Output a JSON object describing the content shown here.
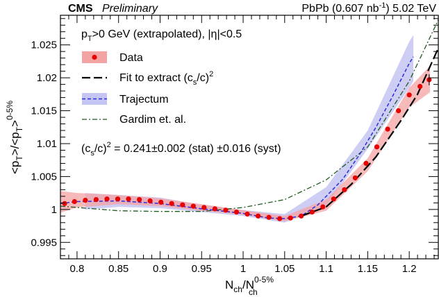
{
  "header": {
    "experiment": "CMS",
    "status": "Preliminary",
    "collision": "PbPb (0.607 nb",
    "lumi_exp": "-1",
    "energy": ") 5.02 TeV"
  },
  "annotations": {
    "selection_pre": "p",
    "selection_sub": "T",
    "selection_post": ">0 GeV (extrapolated), |η|<0.5",
    "result_pre": "(c",
    "result_sub": "s",
    "result_mid": "/c)",
    "result_sup": "2",
    "result_post": " = 0.241±0.002 (stat) ±0.016 (syst)"
  },
  "colors": {
    "data": "#e60000",
    "data_band": "#f4a3a3",
    "fit": "#000000",
    "trajectum": "#2b2bd8",
    "trajectum_band": "#c5c5f3",
    "gardim": "#1f5a1f"
  },
  "chart_data": {
    "type": "line",
    "xlim": [
      0.78,
      1.235
    ],
    "ylim": [
      0.9925,
      1.0295
    ],
    "xticks": [
      0.8,
      0.85,
      0.9,
      0.95,
      1,
      1.05,
      1.1,
      1.15,
      1.2
    ],
    "xtick_labels": [
      "0.8",
      "0.85",
      "0.9",
      "0.95",
      "1",
      "1.05",
      "1.1",
      "1.15",
      "1.2"
    ],
    "yticks": [
      0.995,
      1,
      1.005,
      1.01,
      1.015,
      1.02,
      1.025
    ],
    "ytick_labels": [
      "0.995",
      "1",
      "1.005",
      "1.01",
      "1.015",
      "1.02",
      "1.025"
    ],
    "xlabel": {
      "main": "N",
      "sub": "ch",
      "slash": "/N",
      "sup": "0-5%",
      "sub2": "ch"
    },
    "ylabel": {
      "p1": "<p",
      "s1": "T",
      "p2": ">/<p",
      "s2": "T",
      "p3": ">",
      "sup": "0-5%"
    },
    "legend": [
      {
        "label": "Data",
        "style": "marker-band"
      },
      {
        "label": "Fit to extract (c",
        "label_sub": "s",
        "label_post": "/c)",
        "label_sup": "2",
        "style": "long-dash"
      },
      {
        "label": "Trajectum",
        "style": "dashed-band"
      },
      {
        "label": "Gardim et. al.",
        "style": "dash-dot"
      }
    ],
    "series": [
      {
        "name": "Data",
        "kind": "points",
        "x": [
          0.785,
          0.797,
          0.81,
          0.823,
          0.836,
          0.849,
          0.862,
          0.875,
          0.888,
          0.901,
          0.914,
          0.927,
          0.94,
          0.953,
          0.966,
          0.979,
          0.992,
          1.005,
          1.018,
          1.031,
          1.044,
          1.057,
          1.07,
          1.083,
          1.096,
          1.109,
          1.122,
          1.135,
          1.148,
          1.161,
          1.174,
          1.187,
          1.2,
          1.213,
          1.224
        ],
        "y": [
          1.0009,
          1.0012,
          1.0014,
          1.0015,
          1.0016,
          1.0016,
          1.0016,
          1.0015,
          1.0013,
          1.0011,
          1.0009,
          1.0007,
          1.0005,
          1.0003,
          1.0001,
          0.9999,
          0.9996,
          0.9993,
          0.999,
          0.9988,
          0.9986,
          0.9987,
          0.999,
          0.9996,
          1.0004,
          1.0016,
          1.003,
          1.0048,
          1.007,
          1.0095,
          1.0122,
          1.015,
          1.0174,
          1.0187,
          1.0197
        ]
      },
      {
        "name": "Data",
        "kind": "band",
        "x": [
          0.78,
          0.8,
          0.85,
          0.9,
          0.95,
          1.0,
          1.05,
          1.1,
          1.15,
          1.2,
          1.225
        ],
        "y_low": [
          0.9995,
          1.0003,
          1.0008,
          1.0005,
          0.9998,
          0.9992,
          0.9982,
          0.9998,
          1.0058,
          1.0155,
          1.0178
        ],
        "y_high": [
          1.0028,
          1.0025,
          1.0022,
          1.0017,
          1.0008,
          0.9999,
          0.999,
          1.0015,
          1.0078,
          1.0185,
          1.0218
        ]
      },
      {
        "name": "Fit to extract (c_s/c)^2",
        "kind": "line",
        "x": [
          1.07,
          1.1,
          1.13,
          1.16,
          1.19,
          1.21,
          1.235
        ],
        "y": [
          0.999,
          1.0004,
          1.0038,
          1.008,
          1.0135,
          1.0175,
          1.0245
        ]
      },
      {
        "name": "Trajectum",
        "kind": "line",
        "x": [
          0.78,
          0.8,
          0.85,
          0.9,
          0.95,
          1.0,
          1.03,
          1.05,
          1.07,
          1.09,
          1.1,
          1.12,
          1.14,
          1.16,
          1.18,
          1.2,
          1.205
        ],
        "y": [
          1.0009,
          1.0012,
          1.0013,
          1.0009,
          1.0001,
          0.9994,
          0.9987,
          0.9986,
          0.999,
          1.0007,
          1.002,
          1.0046,
          1.0083,
          1.0125,
          1.0172,
          1.0222,
          1.0232
        ]
      },
      {
        "name": "Trajectum",
        "kind": "band",
        "x": [
          0.81,
          0.85,
          0.9,
          0.95,
          1.0,
          1.05,
          1.1,
          1.15,
          1.2,
          1.205
        ],
        "y_low": [
          1.0,
          1.0004,
          1.0002,
          0.9996,
          0.999,
          0.998,
          1.0006,
          1.0092,
          1.0185,
          1.0195
        ],
        "y_high": [
          1.0025,
          1.0022,
          1.0018,
          1.0007,
          0.9999,
          0.9993,
          1.0034,
          1.012,
          1.0255,
          1.0265
        ]
      },
      {
        "name": "Gardim et. al.",
        "kind": "line",
        "x": [
          0.78,
          0.85,
          0.9,
          0.95,
          1.0,
          1.05,
          1.1,
          1.15,
          1.2,
          1.235
        ],
        "y": [
          1.0005,
          0.9998,
          0.9997,
          0.9997,
          1.0003,
          1.0015,
          1.0045,
          1.0095,
          1.0195,
          1.0288
        ]
      }
    ]
  }
}
